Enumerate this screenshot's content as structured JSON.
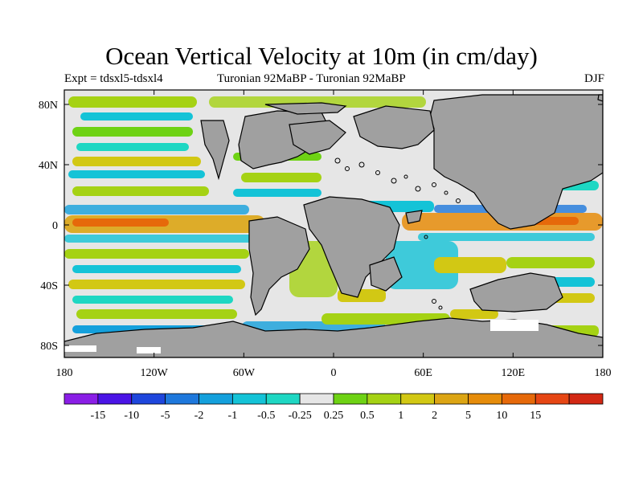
{
  "title": "Ocean Vertical Velocity at 10m (in cm/day)",
  "expt_label": "Expt = tdsxl5-tdsxl4",
  "period_label": "Turonian  92MaBP - Turonian  92MaBP",
  "season_label": "DJF",
  "lat_labels": [
    "80N",
    "40N",
    "0",
    "40S",
    "80S"
  ],
  "lon_labels": [
    "180",
    "120W",
    "60W",
    "0",
    "60E",
    "120E",
    "180"
  ],
  "colorbar": {
    "colors": [
      "#8a1ee6",
      "#4a14e6",
      "#1e46dc",
      "#1e78dc",
      "#14a0dc",
      "#14c3d7",
      "#1ed7c3",
      "#e6e6e6",
      "#6ed214",
      "#a5d214",
      "#d2c814",
      "#dca514",
      "#e68c0a",
      "#e6690a",
      "#e64614",
      "#d22814"
    ],
    "labels": [
      "-15",
      "-10",
      "-5",
      "-2",
      "-1",
      "-0.5",
      "-0.25",
      "0.25",
      "0.5",
      "1",
      "2",
      "5",
      "10",
      "15"
    ]
  },
  "colors": {
    "land": "#a0a0a0",
    "frame": "#000000"
  }
}
